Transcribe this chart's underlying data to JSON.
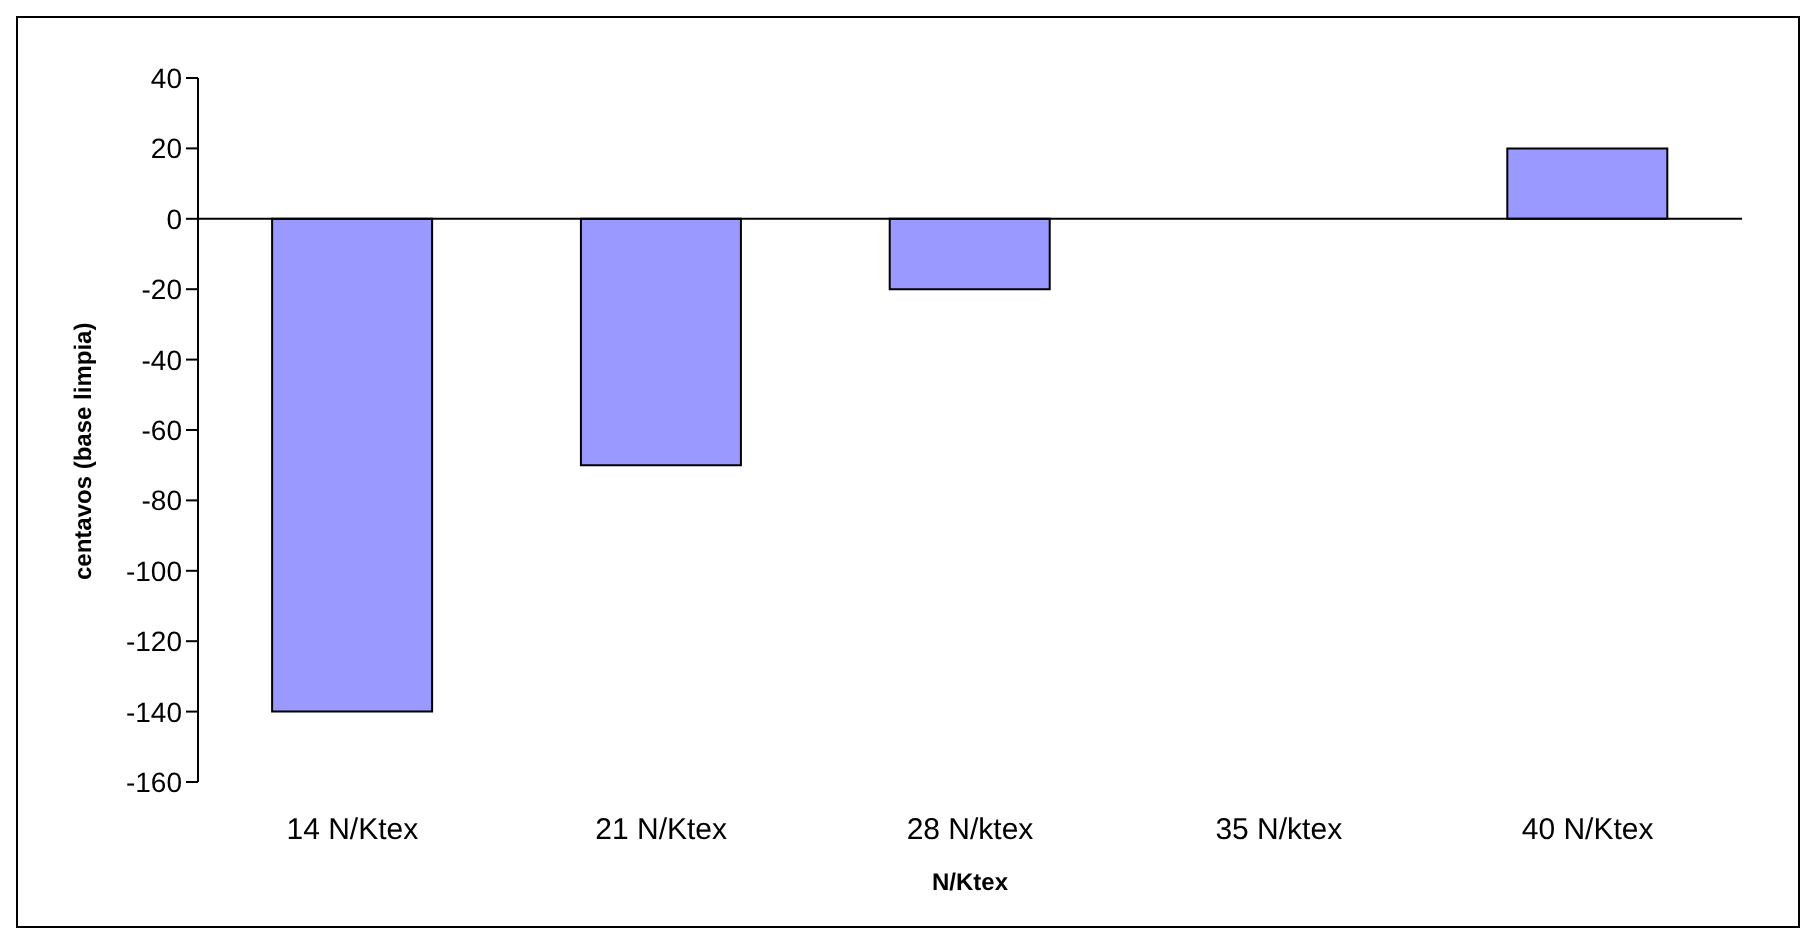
{
  "chart_data": {
    "type": "bar",
    "xlabel": "N/Ktex",
    "ylabel": "centavos (base limpia)",
    "categories": [
      "14 N/Ktex",
      "21 N/Ktex",
      "28 N/ktex",
      "35 N/ktex",
      "40 N/Ktex"
    ],
    "values": [
      -140,
      -70,
      -20,
      0,
      20
    ],
    "color": "#9999ff",
    "ylim": [
      -160,
      40
    ],
    "yticks": [
      -160,
      -140,
      -120,
      -100,
      -80,
      -60,
      -40,
      -20,
      0,
      20,
      40
    ],
    "ref_lines": [
      {
        "axis": "y",
        "value": 0
      }
    ],
    "legend": false
  }
}
